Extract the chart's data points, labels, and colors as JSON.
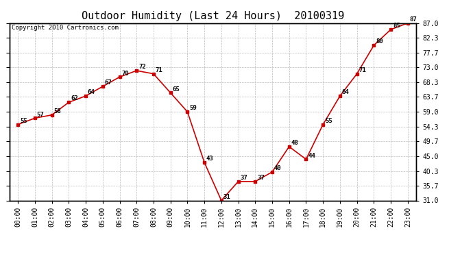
{
  "title": "Outdoor Humidity (Last 24 Hours)  20100319",
  "copyright": "Copyright 2010 Cartronics.com",
  "hours": [
    "00:00",
    "01:00",
    "02:00",
    "03:00",
    "04:00",
    "05:00",
    "06:00",
    "07:00",
    "08:00",
    "09:00",
    "10:00",
    "11:00",
    "12:00",
    "13:00",
    "14:00",
    "15:00",
    "16:00",
    "17:00",
    "18:00",
    "19:00",
    "20:00",
    "21:00",
    "22:00",
    "23:00"
  ],
  "values": [
    55,
    57,
    58,
    62,
    64,
    67,
    70,
    72,
    71,
    65,
    59,
    43,
    31,
    37,
    37,
    40,
    48,
    44,
    55,
    64,
    71,
    80,
    85,
    87
  ],
  "x_indices": [
    0,
    1,
    2,
    3,
    4,
    5,
    6,
    7,
    8,
    9,
    10,
    11,
    12,
    13,
    14,
    15,
    16,
    17,
    18,
    19,
    20,
    21,
    22,
    23
  ],
  "ylim": [
    31.0,
    87.0
  ],
  "yticks": [
    31.0,
    35.7,
    40.3,
    45.0,
    49.7,
    54.3,
    59.0,
    63.7,
    68.3,
    73.0,
    77.7,
    82.3,
    87.0
  ],
  "line_color": "#cc0000",
  "marker_color": "#cc0000",
  "marker_size": 3,
  "bg_color": "#ffffff",
  "grid_color": "#bbbbbb",
  "title_fontsize": 11,
  "label_fontsize": 7,
  "copyright_fontsize": 6.5,
  "annotation_fontsize": 6.5
}
